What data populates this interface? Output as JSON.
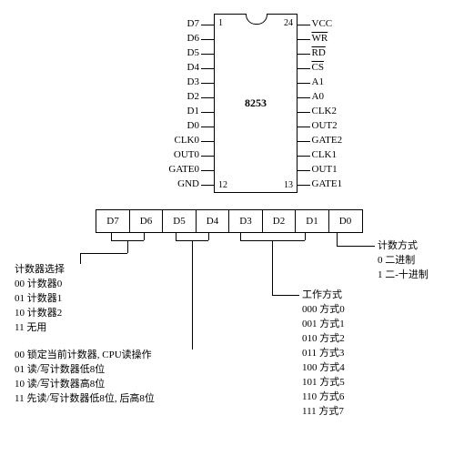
{
  "chip": {
    "name": "8253",
    "left_pins": [
      "D7",
      "D6",
      "D5",
      "D4",
      "D3",
      "D2",
      "D1",
      "D0",
      "CLK0",
      "OUT0",
      "GATE0",
      "GND"
    ],
    "right_pins_raw": [
      "VCC",
      "WR",
      "RD",
      "CS",
      "A1",
      "A0",
      "CLK2",
      "OUT2",
      "GATE2",
      "CLK1",
      "OUT1",
      "GATE1"
    ],
    "right_overline": [
      false,
      true,
      true,
      true,
      false,
      false,
      false,
      false,
      false,
      false,
      false,
      false
    ],
    "pin1": "1",
    "pin12": "12",
    "pin13": "13",
    "pin24": "24"
  },
  "reg_bits": [
    "D7",
    "D6",
    "D5",
    "D4",
    "D3",
    "D2",
    "D1",
    "D0"
  ],
  "counter_sel": {
    "title": "计数器选择",
    "l1": "00 计数器0",
    "l2": "01 计数器1",
    "l3": "10 计数器2",
    "l4": "11 无用"
  },
  "rw_sel": {
    "l1": "00 锁定当前计数器, CPU读操作",
    "l2": "01 读/写计数器低8位",
    "l3": "10 读/写计数器高8位",
    "l4": "11 先读/写计数器低8位, 后高8位"
  },
  "mode": {
    "title": "工作方式",
    "l1": "000 方式0",
    "l2": "001 方式1",
    "l3": "010 方式2",
    "l4": "011 方式3",
    "l5": "100 方式4",
    "l6": "101 方式5",
    "l7": "110 方式6",
    "l8": "111 方式7"
  },
  "bcd": {
    "title": "计数方式",
    "l1": "0 二进制",
    "l2": "1 二-十进制"
  }
}
